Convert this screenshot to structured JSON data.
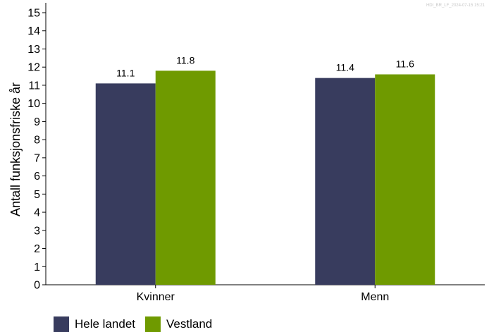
{
  "watermark": "HDI_BR_LF_2024-07-15 15:21",
  "colors": {
    "hele_landet": "#383c5e",
    "vestland": "#6f9a00"
  },
  "chart_data": {
    "type": "bar",
    "categories": [
      "Kvinner",
      "Menn"
    ],
    "series": [
      {
        "name": "Hele landet",
        "values": [
          11.1,
          11.4
        ],
        "value_labels": [
          "11.1",
          "11.4"
        ]
      },
      {
        "name": "Vestland",
        "values": [
          11.8,
          11.6
        ],
        "value_labels": [
          "11.8",
          "11.6"
        ]
      }
    ],
    "title": "",
    "xlabel": "",
    "ylabel": "Antall funksjonsfriske år",
    "ylim": [
      0,
      15
    ],
    "yticks": [
      "0",
      "1",
      "2",
      "3",
      "4",
      "5",
      "6",
      "7",
      "8",
      "9",
      "10",
      "11",
      "12",
      "13",
      "14",
      "15"
    ],
    "grid": false,
    "legend_position": "bottom-left"
  }
}
